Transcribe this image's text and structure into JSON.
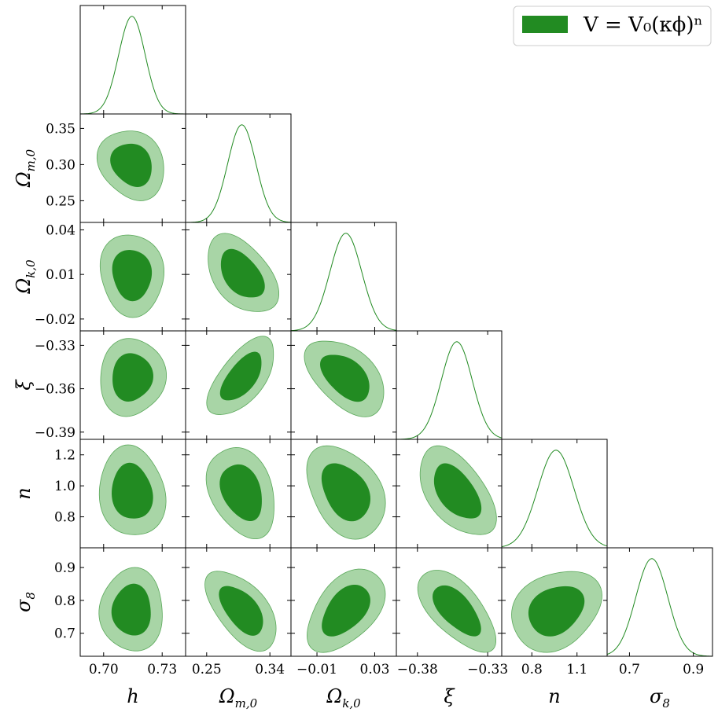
{
  "chart_data": {
    "type": "corner",
    "colors": {
      "inner": "#228B22",
      "outer": "#a8d5a6",
      "outer_stroke": "#5aa85a",
      "line": "#228B22"
    },
    "legend": {
      "label": "V = V₀(κϕ)ⁿ",
      "placement": "top-right"
    },
    "parameters": [
      {
        "key": "h",
        "label": "h",
        "sub": "",
        "range": [
          0.688,
          0.742
        ],
        "ticks": [
          0.7,
          0.73
        ],
        "tick_labels": [
          "0.70",
          "0.73"
        ],
        "mean": 0.7145,
        "sigma": 0.0068
      },
      {
        "key": "Om",
        "label": "Ω",
        "sub": "m,0",
        "range": [
          0.22,
          0.37
        ],
        "ticks": [
          0.25,
          0.34
        ],
        "tick_labels": [
          "0.25",
          "0.34"
        ],
        "ticks_y": [
          0.25,
          0.3,
          0.35
        ],
        "tick_labels_y": [
          "0.25",
          "0.30",
          "0.35"
        ],
        "mean": 0.3,
        "sigma": 0.02
      },
      {
        "key": "Ok",
        "label": "Ω",
        "sub": "k,0",
        "range": [
          -0.028,
          0.045
        ],
        "ticks": [
          -0.01,
          0.03
        ],
        "tick_labels": [
          "−0.01",
          "0.03"
        ],
        "ticks_y": [
          -0.02,
          0.01,
          0.04
        ],
        "tick_labels_y": [
          "−0.02",
          "0.01",
          "0.04"
        ],
        "mean": 0.01,
        "sigma": 0.011
      },
      {
        "key": "xi",
        "label": "ξ",
        "sub": "",
        "range": [
          -0.395,
          -0.32
        ],
        "ticks": [
          -0.38,
          -0.33
        ],
        "tick_labels": [
          "−0.38",
          "−0.33"
        ],
        "ticks_y": [
          -0.39,
          -0.36,
          -0.33
        ],
        "tick_labels_y": [
          "−0.39",
          "−0.36",
          "−0.33"
        ],
        "mean": -0.352,
        "sigma": 0.011
      },
      {
        "key": "n",
        "label": "n",
        "sub": "",
        "range": [
          0.6,
          1.3
        ],
        "ticks": [
          0.8,
          1.1
        ],
        "tick_labels": [
          "0.8",
          "1.1"
        ],
        "ticks_y": [
          0.8,
          1.0,
          1.2
        ],
        "tick_labels_y": [
          "0.8",
          "1.0",
          "1.2"
        ],
        "mean": 0.96,
        "sigma": 0.12
      },
      {
        "key": "s8",
        "label": "σ",
        "sub": "8",
        "range": [
          0.63,
          0.96
        ],
        "ticks": [
          0.7,
          0.9
        ],
        "tick_labels": [
          "0.7",
          "0.9"
        ],
        "ticks_y": [
          0.7,
          0.8,
          0.9
        ],
        "tick_labels_y": [
          "0.7",
          "0.8",
          "0.9"
        ],
        "mean": 0.77,
        "sigma": 0.05
      }
    ],
    "correlations": {
      "1,0": -0.15,
      "2,0": -0.05,
      "2,1": -0.45,
      "3,0": 0.0,
      "3,1": 0.65,
      "3,2": -0.5,
      "4,0": -0.05,
      "4,1": -0.35,
      "4,2": -0.3,
      "4,3": -0.55,
      "5,0": 0.0,
      "5,1": -0.55,
      "5,2": 0.45,
      "5,3": -0.6,
      "5,4": 0.2
    },
    "contour_levels": [
      "68%",
      "95%"
    ]
  }
}
